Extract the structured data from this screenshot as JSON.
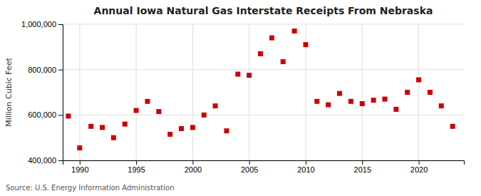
{
  "chart_data": {
    "type": "scatter",
    "title": "Annual Iowa Natural Gas Interstate Receipts From Nebraska",
    "y_label": "Million Cubic Feet",
    "source": "Source: U.S. Energy Information Administration",
    "x": [
      1989,
      1990,
      1991,
      1992,
      1993,
      1994,
      1995,
      1996,
      1997,
      1998,
      1999,
      2000,
      2001,
      2002,
      2003,
      2004,
      2005,
      2006,
      2007,
      2008,
      2009,
      2010,
      2011,
      2012,
      2013,
      2014,
      2015,
      2016,
      2017,
      2018,
      2019,
      2020,
      2021,
      2022,
      2023
    ],
    "values": [
      595000,
      455000,
      550000,
      545000,
      500000,
      560000,
      620000,
      660000,
      615000,
      515000,
      540000,
      545000,
      600000,
      640000,
      530000,
      780000,
      775000,
      870000,
      940000,
      835000,
      970000,
      910000,
      660000,
      645000,
      695000,
      660000,
      650000,
      665000,
      670000,
      625000,
      700000,
      755000,
      700000,
      640000,
      550000
    ],
    "color": "#cc0000",
    "marker": "square",
    "grid": true,
    "xlim": [
      1988.5,
      2024
    ],
    "xticks": [
      1990,
      1995,
      2000,
      2005,
      2010,
      2015,
      2020
    ],
    "ylim": [
      400000,
      1000000
    ],
    "yticks": [
      {
        "value": 400000,
        "label": "400,000"
      },
      {
        "value": 600000,
        "label": "600,000"
      },
      {
        "value": 800000,
        "label": "800,000"
      },
      {
        "value": 1000000,
        "label": "1,000,000"
      }
    ]
  }
}
